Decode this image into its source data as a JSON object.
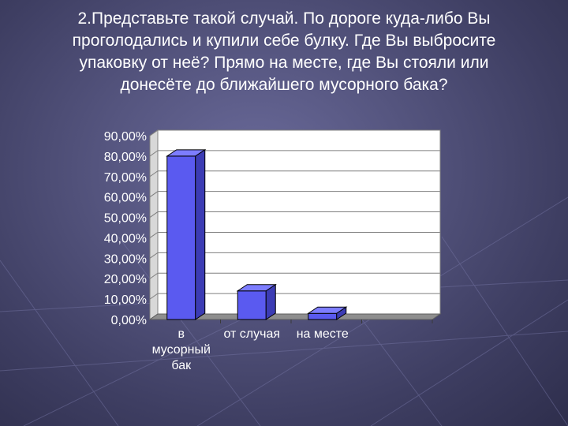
{
  "slide": {
    "title_lines": [
      "2.Представьте такой случай. По дороге куда-либо Вы",
      "проголодались и купили себе булку. Где  Вы выбросите",
      "упаковку от неё? Прямо на месте, где Вы стояли или",
      "донесёте до ближайшего мусорного бака?"
    ]
  },
  "chart_data": {
    "type": "bar",
    "style": "3d",
    "categories": [
      [
        "в",
        "мусорный",
        "бак"
      ],
      [
        "от случая"
      ],
      [
        "на месте"
      ],
      [
        ""
      ]
    ],
    "values": [
      80,
      14,
      3,
      null
    ],
    "ylim": [
      0,
      90
    ],
    "yticks": [
      "0,00%",
      "10,00%",
      "20,00%",
      "30,00%",
      "40,00%",
      "50,00%",
      "60,00%",
      "70,00%",
      "80,00%",
      "90,00%"
    ],
    "grid": true,
    "title": "",
    "xlabel": "",
    "ylabel": "",
    "colors": {
      "bar_front": "#5a5af0",
      "bar_top": "#7d7dff",
      "bar_side": "#3c3cb4",
      "wall": "#ffffff",
      "floor": "#8e8e8e"
    }
  }
}
